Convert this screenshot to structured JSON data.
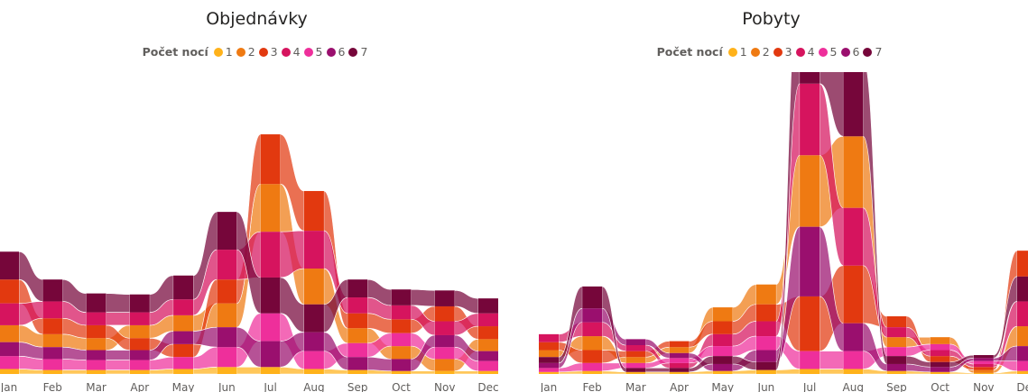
{
  "colors": [
    "#FFB21A",
    "#EF7A12",
    "#E2390F",
    "#D6145E",
    "#EE2F9B",
    "#9A0F6E",
    "#76063A"
  ],
  "chart_data": [
    {
      "type": "area",
      "subtype": "ribbon",
      "title": "Objednávky",
      "legend_title": "Počet nocí",
      "legend_position": "top-center",
      "categories": [
        "Jan",
        "Feb",
        "Mar",
        "Apr",
        "May",
        "Jun",
        "Jul",
        "Aug",
        "Sep",
        "Oct",
        "Nov",
        "Dec"
      ],
      "series": [
        {
          "name": "1",
          "values": [
            5,
            4,
            4,
            4,
            5,
            7,
            7,
            5,
            4,
            3,
            3,
            3
          ]
        },
        {
          "name": "2",
          "values": [
            17,
            13,
            12,
            13,
            16,
            24,
            48,
            36,
            15,
            13,
            12,
            12
          ]
        },
        {
          "name": "3",
          "values": [
            24,
            16,
            13,
            12,
            13,
            24,
            50,
            40,
            15,
            14,
            15,
            13
          ]
        },
        {
          "name": "4",
          "values": [
            22,
            17,
            13,
            13,
            16,
            30,
            46,
            38,
            16,
            14,
            14,
            13
          ]
        },
        {
          "name": "5",
          "values": [
            13,
            11,
            10,
            10,
            12,
            20,
            28,
            18,
            14,
            13,
            12,
            10
          ]
        },
        {
          "name": "6",
          "values": [
            14,
            12,
            10,
            10,
            13,
            20,
            26,
            19,
            13,
            12,
            12,
            10
          ]
        },
        {
          "name": "7",
          "values": [
            28,
            22,
            19,
            18,
            24,
            38,
            36,
            28,
            18,
            16,
            16,
            15
          ]
        }
      ],
      "ylim": [
        0,
        290
      ]
    },
    {
      "type": "area",
      "subtype": "ribbon",
      "title": "Pobyty",
      "legend_title": "Počet nocí",
      "legend_position": "top-center",
      "categories": [
        "Jan",
        "Feb",
        "Mar",
        "Apr",
        "May",
        "Jun",
        "Jul",
        "Aug",
        "Sep",
        "Oct",
        "Nov",
        "Dec"
      ],
      "series": [
        {
          "name": "1",
          "values": [
            2,
            3,
            2,
            2,
            3,
            4,
            5,
            5,
            3,
            2,
            1,
            3
          ]
        },
        {
          "name": "2",
          "values": [
            7,
            14,
            6,
            6,
            14,
            20,
            72,
            72,
            10,
            7,
            3,
            20
          ]
        },
        {
          "name": "3",
          "values": [
            8,
            13,
            6,
            6,
            13,
            17,
            55,
            58,
            11,
            6,
            3,
            26
          ]
        },
        {
          "name": "4",
          "values": [
            8,
            14,
            6,
            5,
            12,
            15,
            72,
            58,
            10,
            6,
            3,
            25
          ]
        },
        {
          "name": "5",
          "values": [
            4,
            8,
            5,
            5,
            10,
            14,
            18,
            18,
            9,
            6,
            3,
            10
          ]
        },
        {
          "name": "6",
          "values": [
            5,
            14,
            6,
            5,
            7,
            12,
            70,
            28,
            7,
            5,
            3,
            15
          ]
        },
        {
          "name": "7",
          "values": [
            6,
            22,
            4,
            4,
            8,
            8,
            105,
            78,
            8,
            5,
            3,
            25
          ]
        }
      ],
      "ylim": [
        0,
        290
      ]
    }
  ]
}
